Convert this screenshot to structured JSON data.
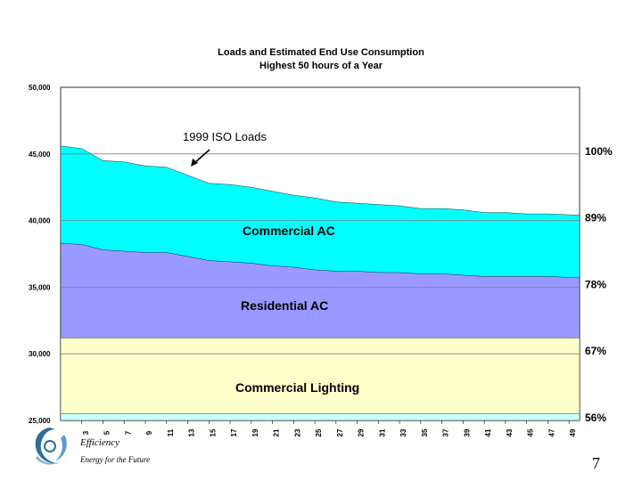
{
  "chart_data": {
    "type": "area",
    "title": "Loads and Estimated End Use Consumption",
    "subtitle": "Highest 50 hours of a Year",
    "ylim": [
      25000,
      50000
    ],
    "y_ticks": [
      "50,000",
      "45,000",
      "40,000",
      "35,000",
      "30,000",
      "25,000"
    ],
    "y_tick_values": [
      50000,
      45000,
      40000,
      35000,
      30000,
      25000
    ],
    "x_ticks": [
      "3",
      "5",
      "7",
      "9",
      "11",
      "13",
      "15",
      "17",
      "19",
      "21",
      "23",
      "25",
      "27",
      "29",
      "31",
      "33",
      "35",
      "37",
      "39",
      "41",
      "43",
      "45",
      "47",
      "49"
    ],
    "x_range": [
      1,
      50
    ],
    "right_labels": [
      "100%",
      "89%",
      "78%",
      "67%",
      "56%"
    ],
    "right_label_values": [
      45000,
      40000,
      35000,
      30000,
      25000
    ],
    "series": [
      {
        "name": "Commercial Lighting",
        "color": "#FFFFCC",
        "points": [
          [
            1,
            31200
          ],
          [
            50,
            31200
          ]
        ]
      },
      {
        "name": "Residential AC",
        "color": "#9999FF",
        "points": [
          [
            1,
            38300
          ],
          [
            3,
            38200
          ],
          [
            5,
            37800
          ],
          [
            7,
            37700
          ],
          [
            9,
            37600
          ],
          [
            11,
            37600
          ],
          [
            13,
            37300
          ],
          [
            15,
            37000
          ],
          [
            17,
            36900
          ],
          [
            19,
            36800
          ],
          [
            21,
            36600
          ],
          [
            23,
            36500
          ],
          [
            25,
            36300
          ],
          [
            27,
            36200
          ],
          [
            29,
            36200
          ],
          [
            31,
            36100
          ],
          [
            33,
            36100
          ],
          [
            35,
            36000
          ],
          [
            37,
            36000
          ],
          [
            39,
            35900
          ],
          [
            41,
            35800
          ],
          [
            43,
            35800
          ],
          [
            45,
            35800
          ],
          [
            47,
            35800
          ],
          [
            50,
            35700
          ]
        ]
      },
      {
        "name": "Commercial AC",
        "color": "#00FFFF",
        "points": [
          [
            1,
            45600
          ],
          [
            3,
            45400
          ],
          [
            5,
            44500
          ],
          [
            7,
            44400
          ],
          [
            9,
            44100
          ],
          [
            11,
            44000
          ],
          [
            13,
            43400
          ],
          [
            15,
            42800
          ],
          [
            17,
            42700
          ],
          [
            19,
            42500
          ],
          [
            21,
            42200
          ],
          [
            23,
            41900
          ],
          [
            25,
            41700
          ],
          [
            27,
            41400
          ],
          [
            29,
            41300
          ],
          [
            31,
            41200
          ],
          [
            33,
            41100
          ],
          [
            35,
            40900
          ],
          [
            37,
            40900
          ],
          [
            39,
            40800
          ],
          [
            41,
            40600
          ],
          [
            43,
            40600
          ],
          [
            45,
            40500
          ],
          [
            47,
            40500
          ],
          [
            50,
            40400
          ]
        ]
      }
    ],
    "base_band": {
      "color": "#CCFFFF",
      "from": 25000,
      "to": 25500
    },
    "annotations": {
      "iso_loads": "1999 ISO Loads",
      "commercial_ac": "Commercial AC",
      "residential_ac": "Residential AC",
      "commercial_lighting": "Commercial Lighting"
    }
  },
  "footer": {
    "brand": "Efficiency",
    "tagline": "Energy for the Future",
    "page_number": "7"
  }
}
